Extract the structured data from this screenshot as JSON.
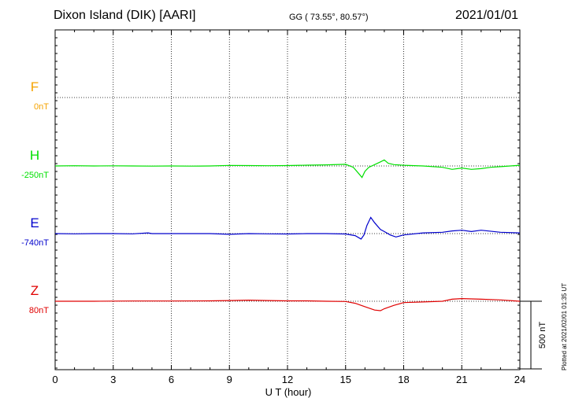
{
  "header": {
    "station": "Dixon Island (DIK)  [AARI]",
    "coords": "GG ( 73.55°,  80.57°)",
    "date": "2021/01/01"
  },
  "side_note": "Plotted at 2021/02/01 01:35 UT",
  "chart_data": {
    "type": "line",
    "xlabel": "U T (hour)",
    "xlim": [
      0,
      24
    ],
    "xticks": [
      "0",
      "3",
      "6",
      "9",
      "12",
      "15",
      "18",
      "21",
      "24"
    ],
    "scale_bar_label": "500 nT",
    "scale_bar_value_nT": 500,
    "series": [
      {
        "name": "F",
        "baseline_label": "0nT",
        "color": "#f5a300",
        "x": [],
        "values": []
      },
      {
        "name": "H",
        "baseline_label": "-250nT",
        "color": "#00e000",
        "x": [
          0,
          1,
          2,
          3,
          4,
          5,
          6,
          7,
          8,
          9,
          10,
          11,
          12,
          13,
          14,
          15,
          15.4,
          15.7,
          15.85,
          16,
          16.2,
          16.5,
          16.8,
          17,
          17.2,
          17.5,
          18,
          19,
          20,
          20.5,
          21,
          21.5,
          22,
          22.5,
          23,
          24
        ],
        "values": [
          0,
          2,
          0,
          1,
          0,
          -1,
          0,
          -1,
          0,
          4,
          3,
          2,
          3,
          6,
          8,
          12,
          -10,
          -60,
          -85,
          -40,
          -10,
          10,
          30,
          45,
          20,
          10,
          5,
          0,
          -10,
          -25,
          -15,
          -25,
          -20,
          -10,
          -5,
          5
        ]
      },
      {
        "name": "E",
        "baseline_label": "-740nT",
        "color": "#0000cc",
        "x": [
          0,
          1,
          2,
          3,
          4,
          4.8,
          5,
          6,
          7,
          8,
          9,
          10,
          11,
          12,
          13,
          14,
          15,
          15.5,
          15.8,
          15.95,
          16.1,
          16.3,
          16.5,
          16.8,
          17,
          17.3,
          17.6,
          18,
          19,
          20,
          20.5,
          21,
          21.5,
          22,
          23,
          24
        ],
        "values": [
          0,
          -2,
          0,
          0,
          -2,
          5,
          0,
          0,
          0,
          0,
          -5,
          0,
          -2,
          -3,
          0,
          0,
          -3,
          -15,
          -40,
          -10,
          60,
          120,
          80,
          30,
          15,
          -10,
          -25,
          -10,
          5,
          10,
          20,
          25,
          15,
          25,
          10,
          5
        ]
      },
      {
        "name": "Z",
        "baseline_label": "80nT",
        "color": "#e00000",
        "x": [
          0,
          2,
          4,
          6,
          8,
          9,
          10,
          11,
          12,
          13,
          14,
          15,
          15.5,
          16,
          16.5,
          16.8,
          17,
          17.5,
          18,
          19,
          20,
          20.5,
          21,
          22,
          23,
          24
        ],
        "values": [
          0,
          0,
          2,
          2,
          3,
          5,
          8,
          5,
          3,
          3,
          0,
          -2,
          -15,
          -40,
          -65,
          -70,
          -55,
          -30,
          -10,
          -5,
          0,
          15,
          20,
          15,
          10,
          0
        ]
      }
    ]
  }
}
